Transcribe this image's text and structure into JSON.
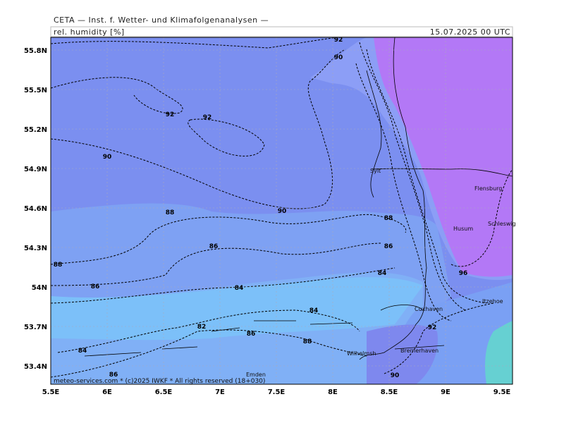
{
  "header": {
    "source": "CETA — Inst. f. Wetter- und Klimafolgenanalysen —",
    "parameter": "rel. humidity [%]",
    "valid_time": "15.07.2025 00 UTC"
  },
  "map": {
    "longitude_labels": [
      "5.5E",
      "6E",
      "6.5E",
      "7E",
      "7.5E",
      "8E",
      "8.5E",
      "9E",
      "9.5E"
    ],
    "latitude_labels": [
      "55.8N",
      "55.5N",
      "55.2N",
      "54.9N",
      "54.6N",
      "54.3N",
      "54N",
      "53.7N",
      "53.4N"
    ],
    "contour_labels": [
      92,
      90,
      92,
      92,
      90,
      88,
      90,
      86,
      88,
      86,
      84,
      88,
      86,
      84,
      96,
      84,
      82,
      86,
      88,
      92,
      84,
      86,
      90
    ],
    "places": [
      "Flensburg",
      "Husum",
      "Schleswig",
      "Itzehoe",
      "Cuxhaven",
      "Bremerhaven",
      "Wilhelmsh",
      "Emden",
      "Sylt"
    ],
    "copyright": "meteo-services.com * (c)2025 IWKF * All rights reserved (18+030)"
  }
}
